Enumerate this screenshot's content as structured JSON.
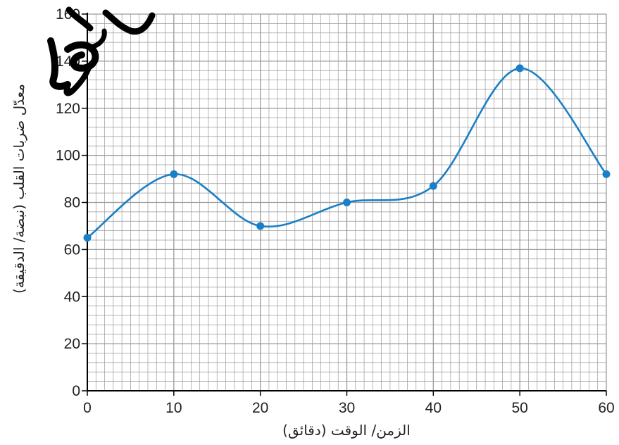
{
  "chart_data": {
    "type": "line",
    "title": "",
    "xlabel": "الزمن/ الوقت (دقائق)",
    "ylabel": "معدّل ضربات القلب (نبضة/ الدقيقة)",
    "xlim": [
      0,
      60
    ],
    "ylim": [
      0,
      160
    ],
    "x_ticks": [
      0,
      10,
      20,
      30,
      40,
      50,
      60
    ],
    "y_ticks": [
      0,
      20,
      40,
      60,
      80,
      100,
      120,
      140,
      160
    ],
    "grid": true,
    "legend": "none",
    "series": [
      {
        "color": "#1a7fc6",
        "points": [
          {
            "x": 0,
            "y": 65
          },
          {
            "x": 10,
            "y": 92
          },
          {
            "x": 20,
            "y": 70
          },
          {
            "x": 30,
            "y": 80
          },
          {
            "x": 40,
            "y": 87
          },
          {
            "x": 50,
            "y": 137
          },
          {
            "x": 60,
            "y": 92
          }
        ]
      }
    ]
  },
  "colors": {
    "grid": "#9a9a9a",
    "axis": "#000000",
    "line": "#1a7fc6",
    "watermark": "#000000"
  }
}
